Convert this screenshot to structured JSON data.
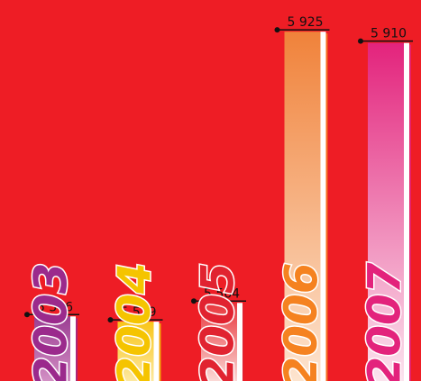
{
  "chart_data": {
    "type": "bar",
    "categories": [
      "2003",
      "2004",
      "2005",
      "2006",
      "2007"
    ],
    "values": [
      5546,
      5539,
      5564,
      5925,
      5910
    ],
    "value_labels": [
      "5 546",
      "5 539",
      "5 564",
      "5 925",
      "5 910"
    ],
    "title": "",
    "xlabel": "",
    "ylabel": "",
    "ylim": [
      5460,
      5930
    ],
    "grid": false,
    "legend": "none",
    "colors": {
      "background": "#ee1d25",
      "bars": [
        {
          "top": "#9b3d92",
          "bottom": "#d28fc4",
          "label": "#9b2a8c"
        },
        {
          "top": "#f9c519",
          "bottom": "#fde8a0",
          "label": "#f5c400"
        },
        {
          "top": "#e8343a",
          "bottom": "#fbd9d6",
          "label": "#e12330"
        },
        {
          "top": "#f0823a",
          "bottom": "#fde4cf",
          "label": "#f58220"
        },
        {
          "top": "#e3237c",
          "bottom": "#fbe3ee",
          "label": "#e3237c"
        }
      ]
    }
  }
}
